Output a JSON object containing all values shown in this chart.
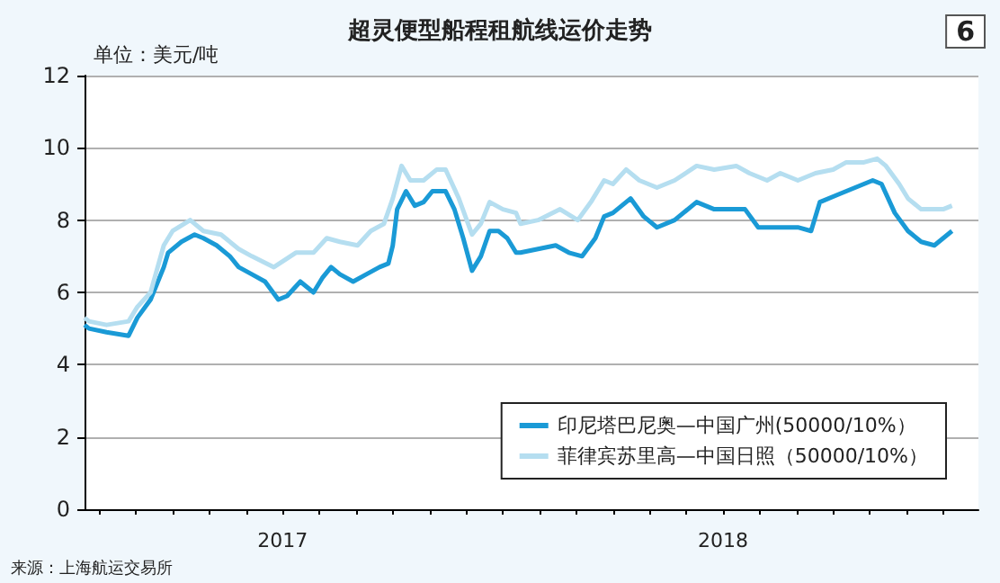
{
  "chart_data": {
    "type": "line",
    "title": "超灵便型船程租航线运价走势",
    "ylabel": "单位：美元/吨",
    "annotations": [
      "6",
      "来源：上海航运交易所"
    ],
    "xlim": [
      2017.05,
      2019.08
    ],
    "xticks": [
      {
        "value": 2017.0833,
        "label": null
      },
      {
        "value": 2017.1667,
        "label": null
      },
      {
        "value": 2017.25,
        "label": null
      },
      {
        "value": 2017.3333,
        "label": null
      },
      {
        "value": 2017.4167,
        "label": null
      },
      {
        "value": 2017.5,
        "label": "2017"
      },
      {
        "value": 2017.5833,
        "label": null
      },
      {
        "value": 2017.6667,
        "label": null
      },
      {
        "value": 2017.75,
        "label": null
      },
      {
        "value": 2017.8333,
        "label": null
      },
      {
        "value": 2017.9167,
        "label": null
      },
      {
        "value": 2018,
        "label": null
      },
      {
        "value": 2018.0833,
        "label": null
      },
      {
        "value": 2018.1667,
        "label": null
      },
      {
        "value": 2018.25,
        "label": null
      },
      {
        "value": 2018.3333,
        "label": null
      },
      {
        "value": 2018.4167,
        "label": null
      },
      {
        "value": 2018.5,
        "label": "2018"
      },
      {
        "value": 2018.5833,
        "label": null
      },
      {
        "value": 2018.6667,
        "label": null
      },
      {
        "value": 2018.75,
        "label": null
      },
      {
        "value": 2018.8333,
        "label": null
      },
      {
        "value": 2018.9167,
        "label": null
      },
      {
        "value": 2019,
        "label": null
      }
    ],
    "ylim": [
      0,
      12
    ],
    "yticks": [
      0,
      2,
      4,
      6,
      8,
      10,
      12
    ],
    "grid": "y",
    "legend": "bottom right",
    "marker": "none",
    "line_style": "solid",
    "series": [
      {
        "name": "印尼塔巴尼奥—中国广州(50000/10%）",
        "color": "#1a9ad6",
        "x": [
          2017.05,
          2017.06,
          2017.1,
          2017.15,
          2017.17,
          2017.2,
          2017.23,
          2017.24,
          2017.27,
          2017.3,
          2017.32,
          2017.35,
          2017.38,
          2017.4,
          2017.43,
          2017.46,
          2017.49,
          2017.51,
          2017.54,
          2017.57,
          2017.59,
          2017.61,
          2017.63,
          2017.66,
          2017.69,
          2017.72,
          2017.74,
          2017.75,
          2017.76,
          2017.78,
          2017.8,
          2017.82,
          2017.84,
          2017.87,
          2017.89,
          2017.91,
          2017.93,
          2017.95,
          2017.97,
          2017.99,
          2018.01,
          2018.03,
          2018.04,
          2018.08,
          2018.12,
          2018.15,
          2018.18,
          2018.21,
          2018.23,
          2018.25,
          2018.29,
          2018.32,
          2018.35,
          2018.39,
          2018.44,
          2018.48,
          2018.52,
          2018.55,
          2018.58,
          2018.63,
          2018.67,
          2018.7,
          2018.72,
          2018.76,
          2018.8,
          2018.82,
          2018.84,
          2018.86,
          2018.89,
          2018.92,
          2018.95,
          2018.98,
          2019.0,
          2019.02
        ],
        "values": [
          5.1,
          5.0,
          4.9,
          4.8,
          5.3,
          5.8,
          6.7,
          7.1,
          7.4,
          7.6,
          7.5,
          7.3,
          7.0,
          6.7,
          6.5,
          6.3,
          5.8,
          5.9,
          6.3,
          6.0,
          6.4,
          6.7,
          6.5,
          6.3,
          6.5,
          6.7,
          6.8,
          7.3,
          8.3,
          8.8,
          8.4,
          8.5,
          8.8,
          8.8,
          8.3,
          7.5,
          6.6,
          7.0,
          7.7,
          7.7,
          7.5,
          7.1,
          7.1,
          7.2,
          7.3,
          7.1,
          7.0,
          7.5,
          8.1,
          8.2,
          8.6,
          8.1,
          7.8,
          8.0,
          8.5,
          8.3,
          8.3,
          8.3,
          7.8,
          7.8,
          7.8,
          7.7,
          8.5,
          8.7,
          8.9,
          9.0,
          9.1,
          9.0,
          8.2,
          7.7,
          7.4,
          7.3,
          7.5,
          7.7
        ]
      },
      {
        "name": "菲律宾苏里高—中国日照（50000/10%）",
        "color": "#b5def0",
        "x": [
          2017.05,
          2017.06,
          2017.1,
          2017.15,
          2017.17,
          2017.2,
          2017.23,
          2017.25,
          2017.29,
          2017.32,
          2017.36,
          2017.4,
          2017.43,
          2017.48,
          2017.53,
          2017.57,
          2017.6,
          2017.63,
          2017.67,
          2017.7,
          2017.73,
          2017.75,
          2017.77,
          2017.79,
          2017.82,
          2017.85,
          2017.87,
          2017.9,
          2017.93,
          2017.95,
          2017.97,
          2018.0,
          2018.03,
          2018.04,
          2018.08,
          2018.13,
          2018.17,
          2018.2,
          2018.23,
          2018.25,
          2018.28,
          2018.31,
          2018.35,
          2018.39,
          2018.44,
          2018.48,
          2018.53,
          2018.56,
          2018.6,
          2018.63,
          2018.67,
          2018.71,
          2018.75,
          2018.78,
          2018.82,
          2018.85,
          2018.87,
          2018.9,
          2018.92,
          2018.95,
          2018.98,
          2019.0,
          2019.02
        ],
        "values": [
          5.3,
          5.2,
          5.1,
          5.2,
          5.6,
          6.0,
          7.3,
          7.7,
          8.0,
          7.7,
          7.6,
          7.2,
          7.0,
          6.7,
          7.1,
          7.1,
          7.5,
          7.4,
          7.3,
          7.7,
          7.9,
          8.6,
          9.5,
          9.1,
          9.1,
          9.4,
          9.4,
          8.6,
          7.6,
          7.9,
          8.5,
          8.3,
          8.2,
          7.9,
          8.0,
          8.3,
          8.0,
          8.5,
          9.1,
          9.0,
          9.4,
          9.1,
          8.9,
          9.1,
          9.5,
          9.4,
          9.5,
          9.3,
          9.1,
          9.3,
          9.1,
          9.3,
          9.4,
          9.6,
          9.6,
          9.7,
          9.5,
          9.0,
          8.6,
          8.3,
          8.3,
          8.3,
          8.4
        ]
      }
    ]
  }
}
